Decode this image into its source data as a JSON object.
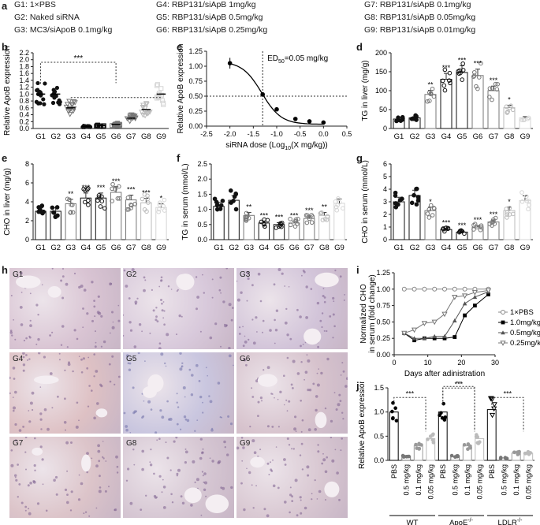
{
  "figure": {
    "panel_letters": [
      "a",
      "b",
      "c",
      "d",
      "e",
      "f",
      "g",
      "h",
      "i",
      "j"
    ],
    "legend": {
      "items": [
        "G1: 1×PBS",
        "G4: RBP131/siApB 1mg/kg",
        "G7: RBP131/siApB 0.1mg/kg",
        "G2: Naked siRNA",
        "G5: RBP131/siApB 0.5mg/kg",
        "G8: RBP131/siApB 0.05mg/kg",
        "G3: MC3/siApoB 0.1mg/kg",
        "G6: RBP131/siApB 0.25mg/kg",
        "G9: RBP131/siApB 0.01mg/kg"
      ]
    },
    "micrographs": [
      "G1",
      "G2",
      "G3",
      "G4",
      "G5",
      "G6",
      "G7",
      "G8",
      "G9"
    ],
    "colors": {
      "dark": "#111111",
      "mid": "#777777",
      "light": "#bbbbbb",
      "faint": "#d6d6d6"
    }
  },
  "chart_data": [
    {
      "id": "b",
      "type": "scatter",
      "ylabel": "Relative ApoB expression",
      "categories": [
        "G1",
        "G2",
        "G3",
        "G4",
        "G5",
        "G6",
        "G7",
        "G8",
        "G9"
      ],
      "yticks": [
        "0.0",
        "0.2",
        "0.4",
        "0.6",
        "0.8",
        "1.0",
        "1.2",
        "1.4",
        "1.6",
        "1.8",
        "2.0",
        "2.2"
      ],
      "ylim": [
        0,
        2.2
      ],
      "values": [
        1.0,
        1.0,
        0.6,
        0.06,
        0.08,
        0.12,
        0.3,
        0.55,
        1.0
      ],
      "significance": [
        "***"
      ]
    },
    {
      "id": "c",
      "type": "line",
      "xlabel": "siRNA dose (Log",
      "xlabel_sub": "10",
      "xlabel_tail": "(X mg/kg))",
      "ylabel": "Relative ApoB expression",
      "annotation": "ED",
      "annotation_sub": "50",
      "annotation_tail": "=0.05 mg/kg",
      "xticks": [
        "-2.5",
        "-2.0",
        "-1.5",
        "-1.0",
        "-0.5",
        "0.0",
        "0.5"
      ],
      "yticks": [
        "0.00",
        "0.25",
        "0.50",
        "0.75",
        "1.00",
        "1.25"
      ],
      "xlim": [
        -2.5,
        0.5
      ],
      "ylim": [
        0,
        1.25
      ],
      "x": [
        -2.0,
        -1.3,
        -1.0,
        -0.6,
        -0.3,
        0.0
      ],
      "y": [
        1.05,
        0.53,
        0.28,
        0.12,
        0.08,
        0.06
      ]
    },
    {
      "id": "d",
      "type": "bar",
      "ylabel": "TG in liver (mg/g)",
      "categories": [
        "G1",
        "G2",
        "G3",
        "G4",
        "G5",
        "G6",
        "G7",
        "G8",
        "G9"
      ],
      "yticks": [
        "0",
        "50",
        "100",
        "150",
        "200"
      ],
      "ylim": [
        0,
        200
      ],
      "values": [
        25,
        28,
        90,
        130,
        148,
        140,
        100,
        55,
        28
      ],
      "significance": [
        "",
        "",
        "**",
        "***",
        "***",
        "***",
        "***",
        "*",
        ""
      ]
    },
    {
      "id": "e",
      "type": "bar",
      "ylabel": "CHO in liver (mg/g)",
      "categories": [
        "G1",
        "G2",
        "G3",
        "G4",
        "G5",
        "G6",
        "G7",
        "G8",
        "G9"
      ],
      "yticks": [
        "0",
        "2",
        "4",
        "6",
        "8"
      ],
      "ylim": [
        0,
        8
      ],
      "values": [
        3.0,
        3.0,
        3.8,
        4.4,
        4.4,
        5.0,
        4.2,
        3.9,
        3.4
      ],
      "significance": [
        "",
        "",
        "**",
        "***",
        "***",
        "***",
        "***",
        "***",
        "*"
      ]
    },
    {
      "id": "f",
      "type": "bar",
      "ylabel": "TG in serum (mmol/L)",
      "categories": [
        "G1",
        "G2",
        "G3",
        "G4",
        "G5",
        "G6",
        "G7",
        "G8",
        "G9"
      ],
      "yticks": [
        "0.0",
        "0.5",
        "1.0",
        "1.5",
        "2.0",
        "2.5"
      ],
      "ylim": [
        0,
        2.5
      ],
      "values": [
        1.1,
        1.3,
        0.8,
        0.55,
        0.5,
        0.55,
        0.7,
        0.8,
        1.2
      ],
      "significance": [
        "",
        "",
        "**",
        "***",
        "***",
        "***",
        "***",
        "**",
        ""
      ]
    },
    {
      "id": "g",
      "type": "bar",
      "ylabel": "CHO in serum (mmol/L)",
      "categories": [
        "G1",
        "G2",
        "G3",
        "G4",
        "G5",
        "G6",
        "G7",
        "G8",
        "G9"
      ],
      "yticks": [
        "0",
        "1",
        "2",
        "3",
        "4",
        "5",
        "6"
      ],
      "ylim": [
        0,
        6
      ],
      "values": [
        3.0,
        3.5,
        2.3,
        0.8,
        0.6,
        1.0,
        1.4,
        2.3,
        3.1
      ],
      "significance": [
        "",
        "",
        "*",
        "***",
        "***",
        "***",
        "***",
        "*",
        ""
      ]
    },
    {
      "id": "i",
      "type": "line",
      "xlabel": "Days after adinistration",
      "ylabel": "Normalized CHO in serum (fold change)",
      "ylabel_line1": "Normalized CHO",
      "ylabel_line2": "in serum (fold change)",
      "xticks": [
        "0",
        "10",
        "20",
        "30"
      ],
      "yticks": [
        "0.00",
        "0.25",
        "0.50",
        "0.75",
        "1.00",
        "1.25"
      ],
      "xlim": [
        0,
        30
      ],
      "ylim": [
        0,
        1.25
      ],
      "series": [
        {
          "name": "1×PBS",
          "x": [
            3,
            6,
            9,
            12,
            15,
            18,
            21,
            24,
            28
          ],
          "y": [
            1,
            1,
            1,
            1,
            1,
            1,
            1,
            1,
            1
          ]
        },
        {
          "name": "1.0mg/kg",
          "x": [
            3,
            6,
            9,
            12,
            15,
            18,
            21,
            24,
            28
          ],
          "y": [
            0.33,
            0.22,
            0.25,
            0.25,
            0.25,
            0.27,
            0.6,
            0.75,
            0.92
          ]
        },
        {
          "name": "0.5mg/kg",
          "x": [
            3,
            6,
            9,
            12,
            15,
            18,
            21,
            24,
            28
          ],
          "y": [
            0.33,
            0.25,
            0.25,
            0.28,
            0.28,
            0.52,
            0.78,
            0.88,
            0.96
          ]
        },
        {
          "name": "0.25mg/kg",
          "x": [
            3,
            6,
            9,
            12,
            15,
            18,
            21,
            24,
            28
          ],
          "y": [
            0.33,
            0.38,
            0.48,
            0.5,
            0.62,
            0.88,
            0.9,
            0.95,
            0.98
          ]
        }
      ]
    },
    {
      "id": "j",
      "type": "scatter",
      "ylabel": "Relative ApoB expression",
      "yticks": [
        "0.0",
        "0.5",
        "1.0",
        "1.5"
      ],
      "ylim": [
        0,
        1.5
      ],
      "categories": [
        "PBS",
        "0.5 mg/kg",
        "0.1 mg/kg",
        "0.05 mg/kg",
        "PBS",
        "0.5 mg/kg",
        "0.1 mg/kg",
        "0.05 mg/kg",
        "PBS",
        "0.5 mg/kg",
        "0.1 mg/kg",
        "0.05 mg/kg"
      ],
      "values": [
        1.0,
        0.08,
        0.3,
        0.45,
        1.0,
        0.08,
        0.3,
        0.45,
        1.05,
        0.05,
        0.15,
        0.15
      ],
      "groups": [
        "WT",
        "ApoE",
        "LDLR"
      ],
      "group_sup": "-/-",
      "significance": [
        "***",
        "***",
        "**",
        "***"
      ]
    }
  ]
}
